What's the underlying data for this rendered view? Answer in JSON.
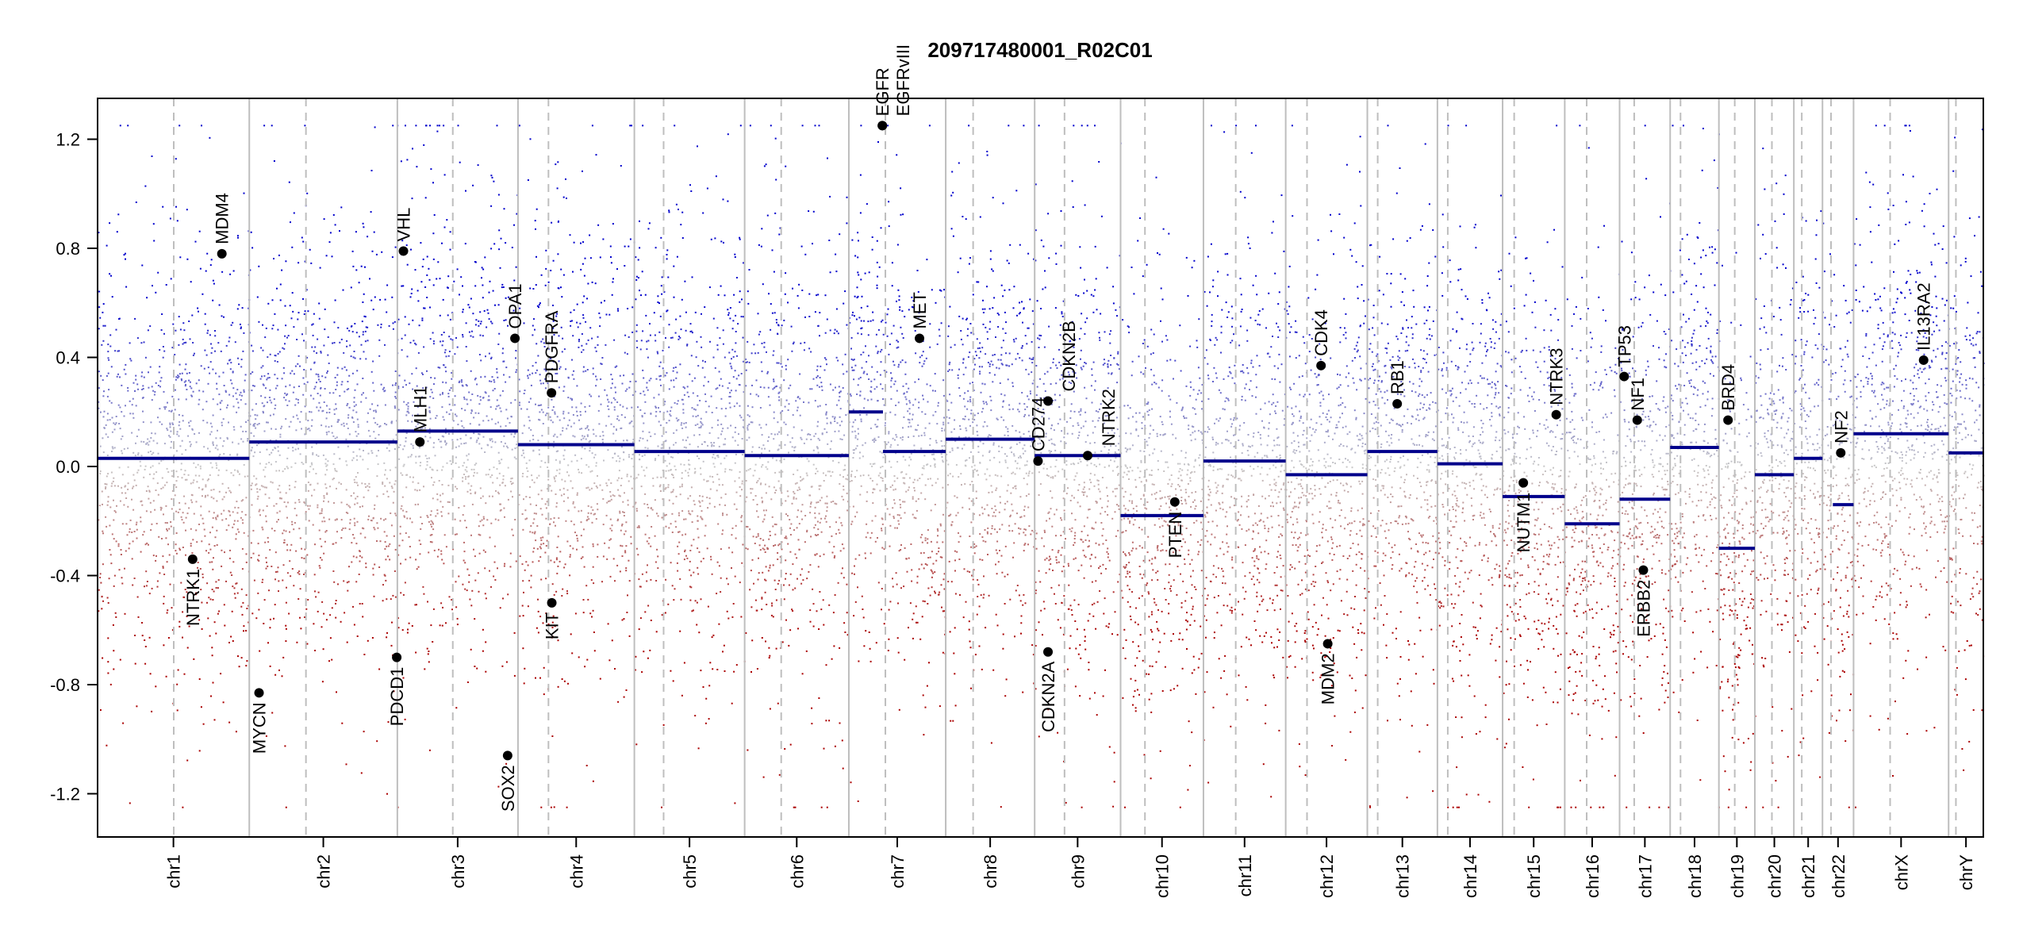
{
  "chart_data": {
    "type": "scatter",
    "title": "209717480001_R02C01",
    "xlabel": "",
    "ylabel": "",
    "ylim": [
      -1.25,
      1.25
    ],
    "yticks": [
      -1.2,
      -0.8,
      -0.4,
      0.0,
      0.4,
      0.8,
      1.2
    ],
    "ytick_labels": [
      "-1.2",
      "-0.8",
      "-0.4",
      "0.0",
      "0.4",
      "0.8",
      "1.2"
    ],
    "colors": {
      "gain": "#0000cc",
      "loss": "#aa0000",
      "neutral": "#c8c8c8",
      "segment": "#00008b",
      "gene": "#000000",
      "chr_border": "#bebebe"
    },
    "chromosomes": [
      {
        "name": "chr1",
        "length_mb": 249,
        "centromere_mb": 125,
        "segments": [
          [
            0,
            249,
            0.03
          ]
        ]
      },
      {
        "name": "chr2",
        "length_mb": 243,
        "centromere_mb": 93,
        "segments": [
          [
            0,
            243,
            0.09
          ]
        ]
      },
      {
        "name": "chr3",
        "length_mb": 198,
        "centromere_mb": 91,
        "segments": [
          [
            0,
            198,
            0.13
          ]
        ]
      },
      {
        "name": "chr4",
        "length_mb": 191,
        "centromere_mb": 50,
        "segments": [
          [
            0,
            191,
            0.08
          ]
        ]
      },
      {
        "name": "chr5",
        "length_mb": 181,
        "centromere_mb": 48,
        "segments": [
          [
            0,
            181,
            0.055
          ]
        ]
      },
      {
        "name": "chr6",
        "length_mb": 171,
        "centromere_mb": 60,
        "segments": [
          [
            0,
            171,
            0.04
          ]
        ]
      },
      {
        "name": "chr7",
        "length_mb": 159,
        "centromere_mb": 60,
        "segments": [
          [
            0,
            56,
            0.2
          ],
          [
            56,
            159,
            0.055
          ]
        ]
      },
      {
        "name": "chr8",
        "length_mb": 146,
        "centromere_mb": 45,
        "segments": [
          [
            0,
            146,
            0.1
          ]
        ]
      },
      {
        "name": "chr9",
        "length_mb": 141,
        "centromere_mb": 49,
        "segments": [
          [
            0,
            141,
            0.04
          ]
        ]
      },
      {
        "name": "chr10",
        "length_mb": 136,
        "centromere_mb": 40,
        "segments": [
          [
            0,
            136,
            -0.18
          ]
        ]
      },
      {
        "name": "chr11",
        "length_mb": 135,
        "centromere_mb": 53,
        "segments": [
          [
            0,
            135,
            0.02
          ]
        ]
      },
      {
        "name": "chr12",
        "length_mb": 134,
        "centromere_mb": 35,
        "segments": [
          [
            0,
            134,
            -0.03
          ]
        ]
      },
      {
        "name": "chr13",
        "length_mb": 115,
        "centromere_mb": 17,
        "segments": [
          [
            0,
            115,
            0.055
          ]
        ]
      },
      {
        "name": "chr14",
        "length_mb": 107,
        "centromere_mb": 17,
        "segments": [
          [
            0,
            107,
            0.01
          ]
        ]
      },
      {
        "name": "chr15",
        "length_mb": 102,
        "centromere_mb": 19,
        "segments": [
          [
            0,
            102,
            -0.11
          ]
        ]
      },
      {
        "name": "chr16",
        "length_mb": 90,
        "centromere_mb": 36,
        "segments": [
          [
            0,
            90,
            -0.21
          ]
        ]
      },
      {
        "name": "chr17",
        "length_mb": 83,
        "centromere_mb": 24,
        "segments": [
          [
            0,
            83,
            -0.12
          ]
        ]
      },
      {
        "name": "chr18",
        "length_mb": 80,
        "centromere_mb": 17,
        "segments": [
          [
            0,
            80,
            0.07
          ]
        ]
      },
      {
        "name": "chr19",
        "length_mb": 59,
        "centromere_mb": 26,
        "segments": [
          [
            0,
            59,
            -0.3
          ]
        ]
      },
      {
        "name": "chr20",
        "length_mb": 64,
        "centromere_mb": 28,
        "segments": [
          [
            0,
            64,
            -0.03
          ]
        ]
      },
      {
        "name": "chr21",
        "length_mb": 47,
        "centromere_mb": 13,
        "segments": [
          [
            0,
            47,
            0.03
          ]
        ]
      },
      {
        "name": "chr22",
        "length_mb": 51,
        "centromere_mb": 14,
        "segments": [
          [
            17,
            51,
            -0.14
          ]
        ]
      },
      {
        "name": "chrX",
        "length_mb": 156,
        "centromere_mb": 60,
        "segments": [
          [
            0,
            156,
            0.12
          ]
        ]
      },
      {
        "name": "chrY",
        "length_mb": 57,
        "centromere_mb": 12,
        "segments": [
          [
            0,
            57,
            0.05
          ]
        ]
      }
    ],
    "genes": [
      {
        "name": "MDM4",
        "chr": "chr1",
        "pos_mb": 204,
        "value": 0.78
      },
      {
        "name": "NTRK1",
        "chr": "chr1",
        "pos_mb": 156,
        "value": -0.34
      },
      {
        "name": "MYCN",
        "chr": "chr2",
        "pos_mb": 16,
        "value": -0.83
      },
      {
        "name": "PDCD1",
        "chr": "chr2",
        "pos_mb": 242,
        "value": -0.7
      },
      {
        "name": "VHL",
        "chr": "chr3",
        "pos_mb": 10,
        "value": 0.79
      },
      {
        "name": "MLH1",
        "chr": "chr3",
        "pos_mb": 37,
        "value": 0.09
      },
      {
        "name": "SOX2",
        "chr": "chr3",
        "pos_mb": 181,
        "value": -1.06
      },
      {
        "name": "OPA1",
        "chr": "chr3",
        "pos_mb": 193,
        "value": 0.47
      },
      {
        "name": "PDGFRA",
        "chr": "chr4",
        "pos_mb": 55,
        "value": 0.27
      },
      {
        "name": "KIT",
        "chr": "chr4",
        "pos_mb": 55.5,
        "value": -0.5
      },
      {
        "name": "EGFR",
        "chr": "chr7",
        "pos_mb": 55,
        "value": 1.25
      },
      {
        "name": "EGFRvIII",
        "chr": "chr7",
        "pos_mb": 55,
        "value": 1.25
      },
      {
        "name": "MET",
        "chr": "chr7",
        "pos_mb": 116,
        "value": 0.47
      },
      {
        "name": "CD274",
        "chr": "chr9",
        "pos_mb": 5.5,
        "value": 0.02
      },
      {
        "name": "CDKN2A",
        "chr": "chr9",
        "pos_mb": 21.9,
        "value": -0.68
      },
      {
        "name": "CDKN2B",
        "chr": "chr9",
        "pos_mb": 22,
        "value": 0.24
      },
      {
        "name": "NTRK2",
        "chr": "chr9",
        "pos_mb": 87,
        "value": 0.04
      },
      {
        "name": "PTEN",
        "chr": "chr10",
        "pos_mb": 89,
        "value": -0.13
      },
      {
        "name": "CDK4",
        "chr": "chr12",
        "pos_mb": 58,
        "value": 0.37
      },
      {
        "name": "MDM2",
        "chr": "chr12",
        "pos_mb": 69,
        "value": -0.65
      },
      {
        "name": "RB1",
        "chr": "chr13",
        "pos_mb": 49,
        "value": 0.23
      },
      {
        "name": "NUTM1",
        "chr": "chr15",
        "pos_mb": 34,
        "value": -0.06
      },
      {
        "name": "NTRK3",
        "chr": "chr15",
        "pos_mb": 88,
        "value": 0.19
      },
      {
        "name": "TP53",
        "chr": "chr17",
        "pos_mb": 7.5,
        "value": 0.33
      },
      {
        "name": "NF1",
        "chr": "chr17",
        "pos_mb": 29,
        "value": 0.17
      },
      {
        "name": "ERBB2",
        "chr": "chr17",
        "pos_mb": 39,
        "value": -0.38
      },
      {
        "name": "BRD4",
        "chr": "chr19",
        "pos_mb": 15,
        "value": 0.17
      },
      {
        "name": "NF2",
        "chr": "chr22",
        "pos_mb": 30,
        "value": 0.05
      },
      {
        "name": "IL13RA2",
        "chr": "chrX",
        "pos_mb": 115,
        "value": 0.39
      }
    ],
    "probe_density_per_mb": 4,
    "probe_sd": 0.36,
    "grid": false,
    "legend": "none"
  }
}
